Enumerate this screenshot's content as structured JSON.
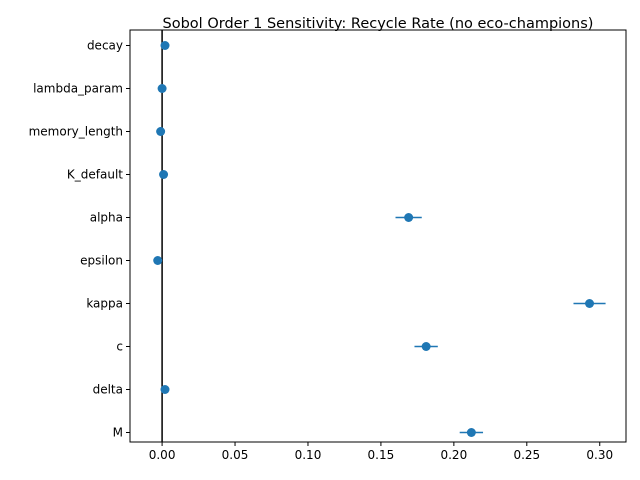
{
  "chart_data": {
    "type": "scatter",
    "title": "Sobol Order 1 Sensitivity: Recycle Rate (no eco-champions)",
    "xlabel": "",
    "ylabel": "",
    "xlim": [
      -0.022,
      0.318
    ],
    "categories": [
      "decay",
      "lambda_param",
      "memory_length",
      "K_default",
      "alpha",
      "epsilon",
      "kappa",
      "c",
      "delta",
      "M"
    ],
    "values": [
      0.002,
      0.0,
      -0.001,
      0.001,
      0.169,
      -0.003,
      0.293,
      0.181,
      0.002,
      0.212
    ],
    "errors": [
      0.0,
      0.0,
      0.0,
      0.0,
      0.009,
      0.0,
      0.011,
      0.008,
      0.0,
      0.008
    ],
    "x_ticks": [
      0.0,
      0.05,
      0.1,
      0.15,
      0.2,
      0.25,
      0.3
    ],
    "x_tick_labels": [
      "0.00",
      "0.05",
      "0.10",
      "0.15",
      "0.20",
      "0.25",
      "0.30"
    ],
    "reference_line_x": 0,
    "grid": false,
    "colors": {
      "point": "#1f77b4",
      "reference": "#000000"
    }
  }
}
